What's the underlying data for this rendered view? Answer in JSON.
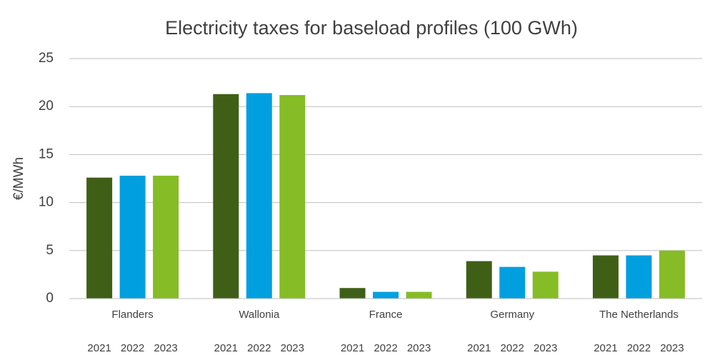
{
  "chart_data": {
    "type": "bar",
    "title": "Electricity taxes for baseload profiles (100 GWh)",
    "y_label": "€/MWh",
    "categories": [
      "Flanders",
      "Wallonia",
      "France",
      "Germany",
      "The Netherlands"
    ],
    "series": [
      {
        "name": "2021",
        "color": "#3f5f17",
        "values": [
          12.6,
          21.3,
          1.1,
          3.9,
          4.5
        ]
      },
      {
        "name": "2022",
        "color": "#00a0e0",
        "values": [
          12.8,
          21.4,
          0.7,
          3.3,
          4.5
        ]
      },
      {
        "name": "2023",
        "color": "#86bc25",
        "values": [
          12.8,
          21.2,
          0.7,
          2.8,
          5.0
        ]
      }
    ],
    "ylim": [
      0,
      25
    ],
    "yticks": [
      0,
      5,
      10,
      15,
      20,
      25
    ],
    "grid": true
  }
}
